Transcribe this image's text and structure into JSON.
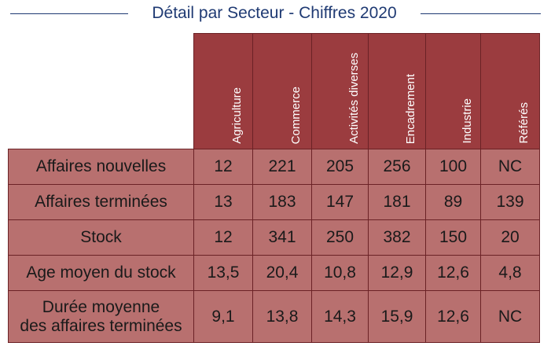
{
  "title": "Détail par Secteur - Chiffres 2020",
  "columns": [
    "Agriculture",
    "Commerce",
    "Activités diverses",
    "Encadrement",
    "Industrie",
    "Référés"
  ],
  "rows": [
    {
      "label": "Affaires nouvelles",
      "values": [
        "12",
        "221",
        "205",
        "256",
        "100",
        "NC"
      ]
    },
    {
      "label": "Affaires terminées",
      "values": [
        "13",
        "183",
        "147",
        "181",
        "89",
        "139"
      ]
    },
    {
      "label": "Stock",
      "values": [
        "12",
        "341",
        "250",
        "382",
        "150",
        "20"
      ]
    },
    {
      "label": "Age moyen du stock",
      "values": [
        "13,5",
        "20,4",
        "10,8",
        "12,9",
        "12,6",
        "4,8"
      ]
    },
    {
      "label_line1": "Durée moyenne",
      "label_line2": "des affaires terminées",
      "values": [
        "9,1",
        "13,8",
        "14,3",
        "15,9",
        "12,6",
        "NC"
      ]
    }
  ],
  "colors": {
    "header": "#9b3c3f",
    "body": "#b8706f",
    "title": "#1f3a73"
  }
}
